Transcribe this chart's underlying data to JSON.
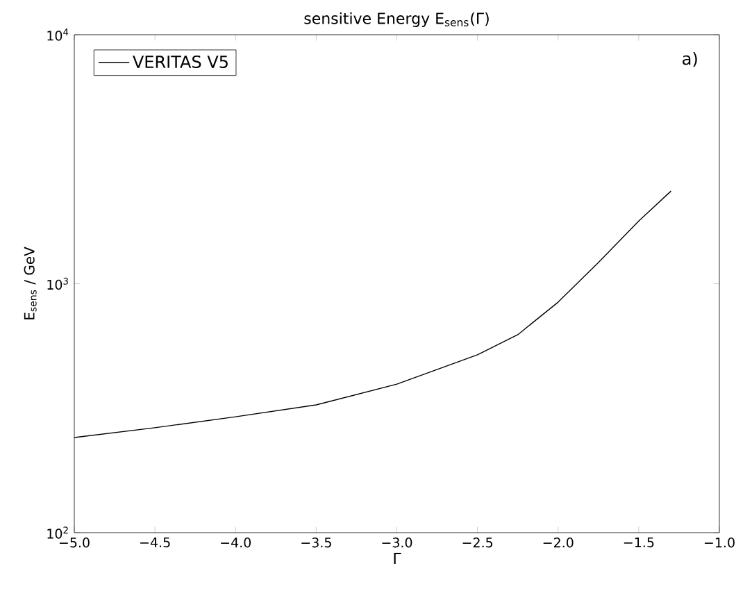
{
  "chart_data": {
    "type": "line",
    "title": "sensitive Energy E$_{sens}$(Γ)",
    "xlabel": "Γ",
    "ylabel": "E$_{sens}$ / GeV",
    "annotations": [
      "a)"
    ],
    "x": [
      -5.0,
      -4.5,
      -4.0,
      -3.5,
      -3.0,
      -2.5,
      -2.25,
      -2.0,
      -1.75,
      -1.5,
      -1.3
    ],
    "series": [
      {
        "name": "VERITAS V5",
        "color": "#000000",
        "values": [
          241,
          264,
          292,
          326,
          395,
          518,
          624,
          843,
          1216,
          1786,
          2355
        ]
      }
    ],
    "xlim": [
      -5.0,
      -1.0
    ],
    "ylim": [
      100,
      10000
    ],
    "log": "y",
    "xticks": [
      {
        "value": -5.0,
        "label": "−5.0"
      },
      {
        "value": -4.5,
        "label": "−4.5"
      },
      {
        "value": -4.0,
        "label": "−4.0"
      },
      {
        "value": -3.5,
        "label": "−3.5"
      },
      {
        "value": -3.0,
        "label": "−3.0"
      },
      {
        "value": -2.5,
        "label": "−2.5"
      },
      {
        "value": -2.0,
        "label": "−2.0"
      },
      {
        "value": -1.5,
        "label": "−1.5"
      },
      {
        "value": -1.0,
        "label": "−1.0"
      }
    ],
    "yticks": [
      {
        "value": 100,
        "label": "10$^{2}$"
      },
      {
        "value": 1000,
        "label": "10$^{3}$"
      },
      {
        "value": 10000,
        "label": "10$^{4}$"
      }
    ],
    "legend": "top left",
    "grid": false,
    "marker": "none",
    "line_style": "solid"
  }
}
